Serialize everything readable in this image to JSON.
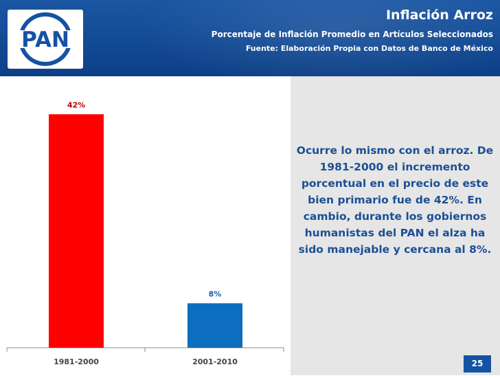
{
  "header": {
    "title": "Inflación Arroz",
    "subtitle": "Porcentaje de Inflación Promedio en Artículos Seleccionados",
    "source": "Fuente: Elaboración Propia con Datos de Banco de México",
    "logo_text": "PAN"
  },
  "comment": "Ocurre lo mismo con el arroz. De 1981-2000 el incremento porcentual en el precio de este bien primario fue de 42%. En cambio, durante los gobiernos humanistas del PAN el alza ha sido manejable y cercana al 8%.",
  "page_number": "25",
  "colors": {
    "header_blue": "#1453a3",
    "bar_red": "#ff0000",
    "bar_blue": "#0d6dbf",
    "comment_text": "#1c4f95"
  },
  "chart_data": {
    "type": "bar",
    "categories": [
      "1981-2000",
      "2001-2010"
    ],
    "values": [
      42,
      8
    ],
    "data_labels": [
      "42%",
      "8%"
    ],
    "bar_colors": [
      "#ff0000",
      "#0d6dbf"
    ],
    "label_colors": [
      "#c00000",
      "#1f5fa8"
    ],
    "ylim": [
      0,
      45
    ],
    "grid": false
  }
}
